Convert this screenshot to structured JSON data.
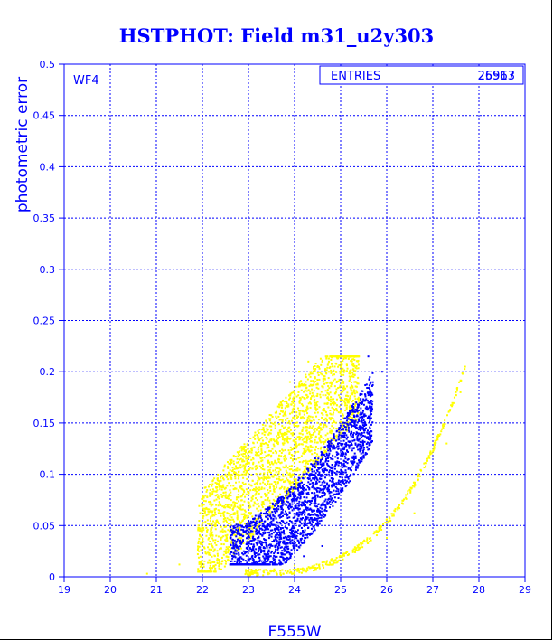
{
  "chart_data": {
    "type": "scatter",
    "title": "HSTPHOT: Field m31_u2y303",
    "xlabel": "F555W",
    "ylabel": "photometric error",
    "xlim": [
      19,
      29
    ],
    "ylim": [
      0,
      0.5
    ],
    "x_ticks": [
      "19",
      "20",
      "21",
      "22",
      "23",
      "24",
      "25",
      "26",
      "27",
      "28",
      "29"
    ],
    "y_ticks": [
      "0",
      "0.05",
      "0.1",
      "0.15",
      "0.2",
      "0.25",
      "0.3",
      "0.35",
      "0.4",
      "0.45",
      "0.5"
    ],
    "grid": true,
    "panel_label": "WF4",
    "stats_box": {
      "label": "ENTRIES",
      "values": [
        "25917",
        "26563"
      ]
    },
    "series": [
      {
        "color": "#ffff00",
        "approx_points": [
          [
            20.8,
            0.003
          ],
          [
            21.5,
            0.012
          ],
          [
            21.9,
            0.022
          ],
          [
            22.1,
            0.045
          ],
          [
            22.3,
            0.04
          ],
          [
            22.5,
            0.055
          ],
          [
            22.7,
            0.07
          ],
          [
            22.9,
            0.09
          ],
          [
            23.1,
            0.11
          ],
          [
            23.3,
            0.13
          ],
          [
            23.5,
            0.15
          ],
          [
            23.7,
            0.17
          ],
          [
            23.9,
            0.19
          ],
          [
            24.1,
            0.2
          ],
          [
            24.3,
            0.21
          ],
          [
            24.6,
            0.21
          ],
          [
            24.9,
            0.2
          ],
          [
            25.3,
            0.19
          ],
          [
            23.0,
            0.005
          ],
          [
            24.0,
            0.011
          ],
          [
            25.0,
            0.02
          ],
          [
            26.0,
            0.038
          ],
          [
            26.6,
            0.062
          ],
          [
            27.0,
            0.095
          ],
          [
            27.3,
            0.13
          ],
          [
            27.6,
            0.18
          ],
          [
            27.7,
            0.205
          ]
        ]
      },
      {
        "color": "#0000ff",
        "approx_points": [
          [
            22.7,
            0.02
          ],
          [
            23.0,
            0.03
          ],
          [
            23.3,
            0.04
          ],
          [
            23.6,
            0.05
          ],
          [
            23.9,
            0.07
          ],
          [
            24.2,
            0.09
          ],
          [
            24.5,
            0.11
          ],
          [
            24.8,
            0.13
          ],
          [
            25.1,
            0.14
          ],
          [
            25.3,
            0.15
          ],
          [
            25.6,
            0.17
          ],
          [
            25.9,
            0.2
          ],
          [
            25.6,
            0.215
          ],
          [
            24.2,
            0.02
          ],
          [
            24.6,
            0.03
          ]
        ]
      }
    ]
  }
}
